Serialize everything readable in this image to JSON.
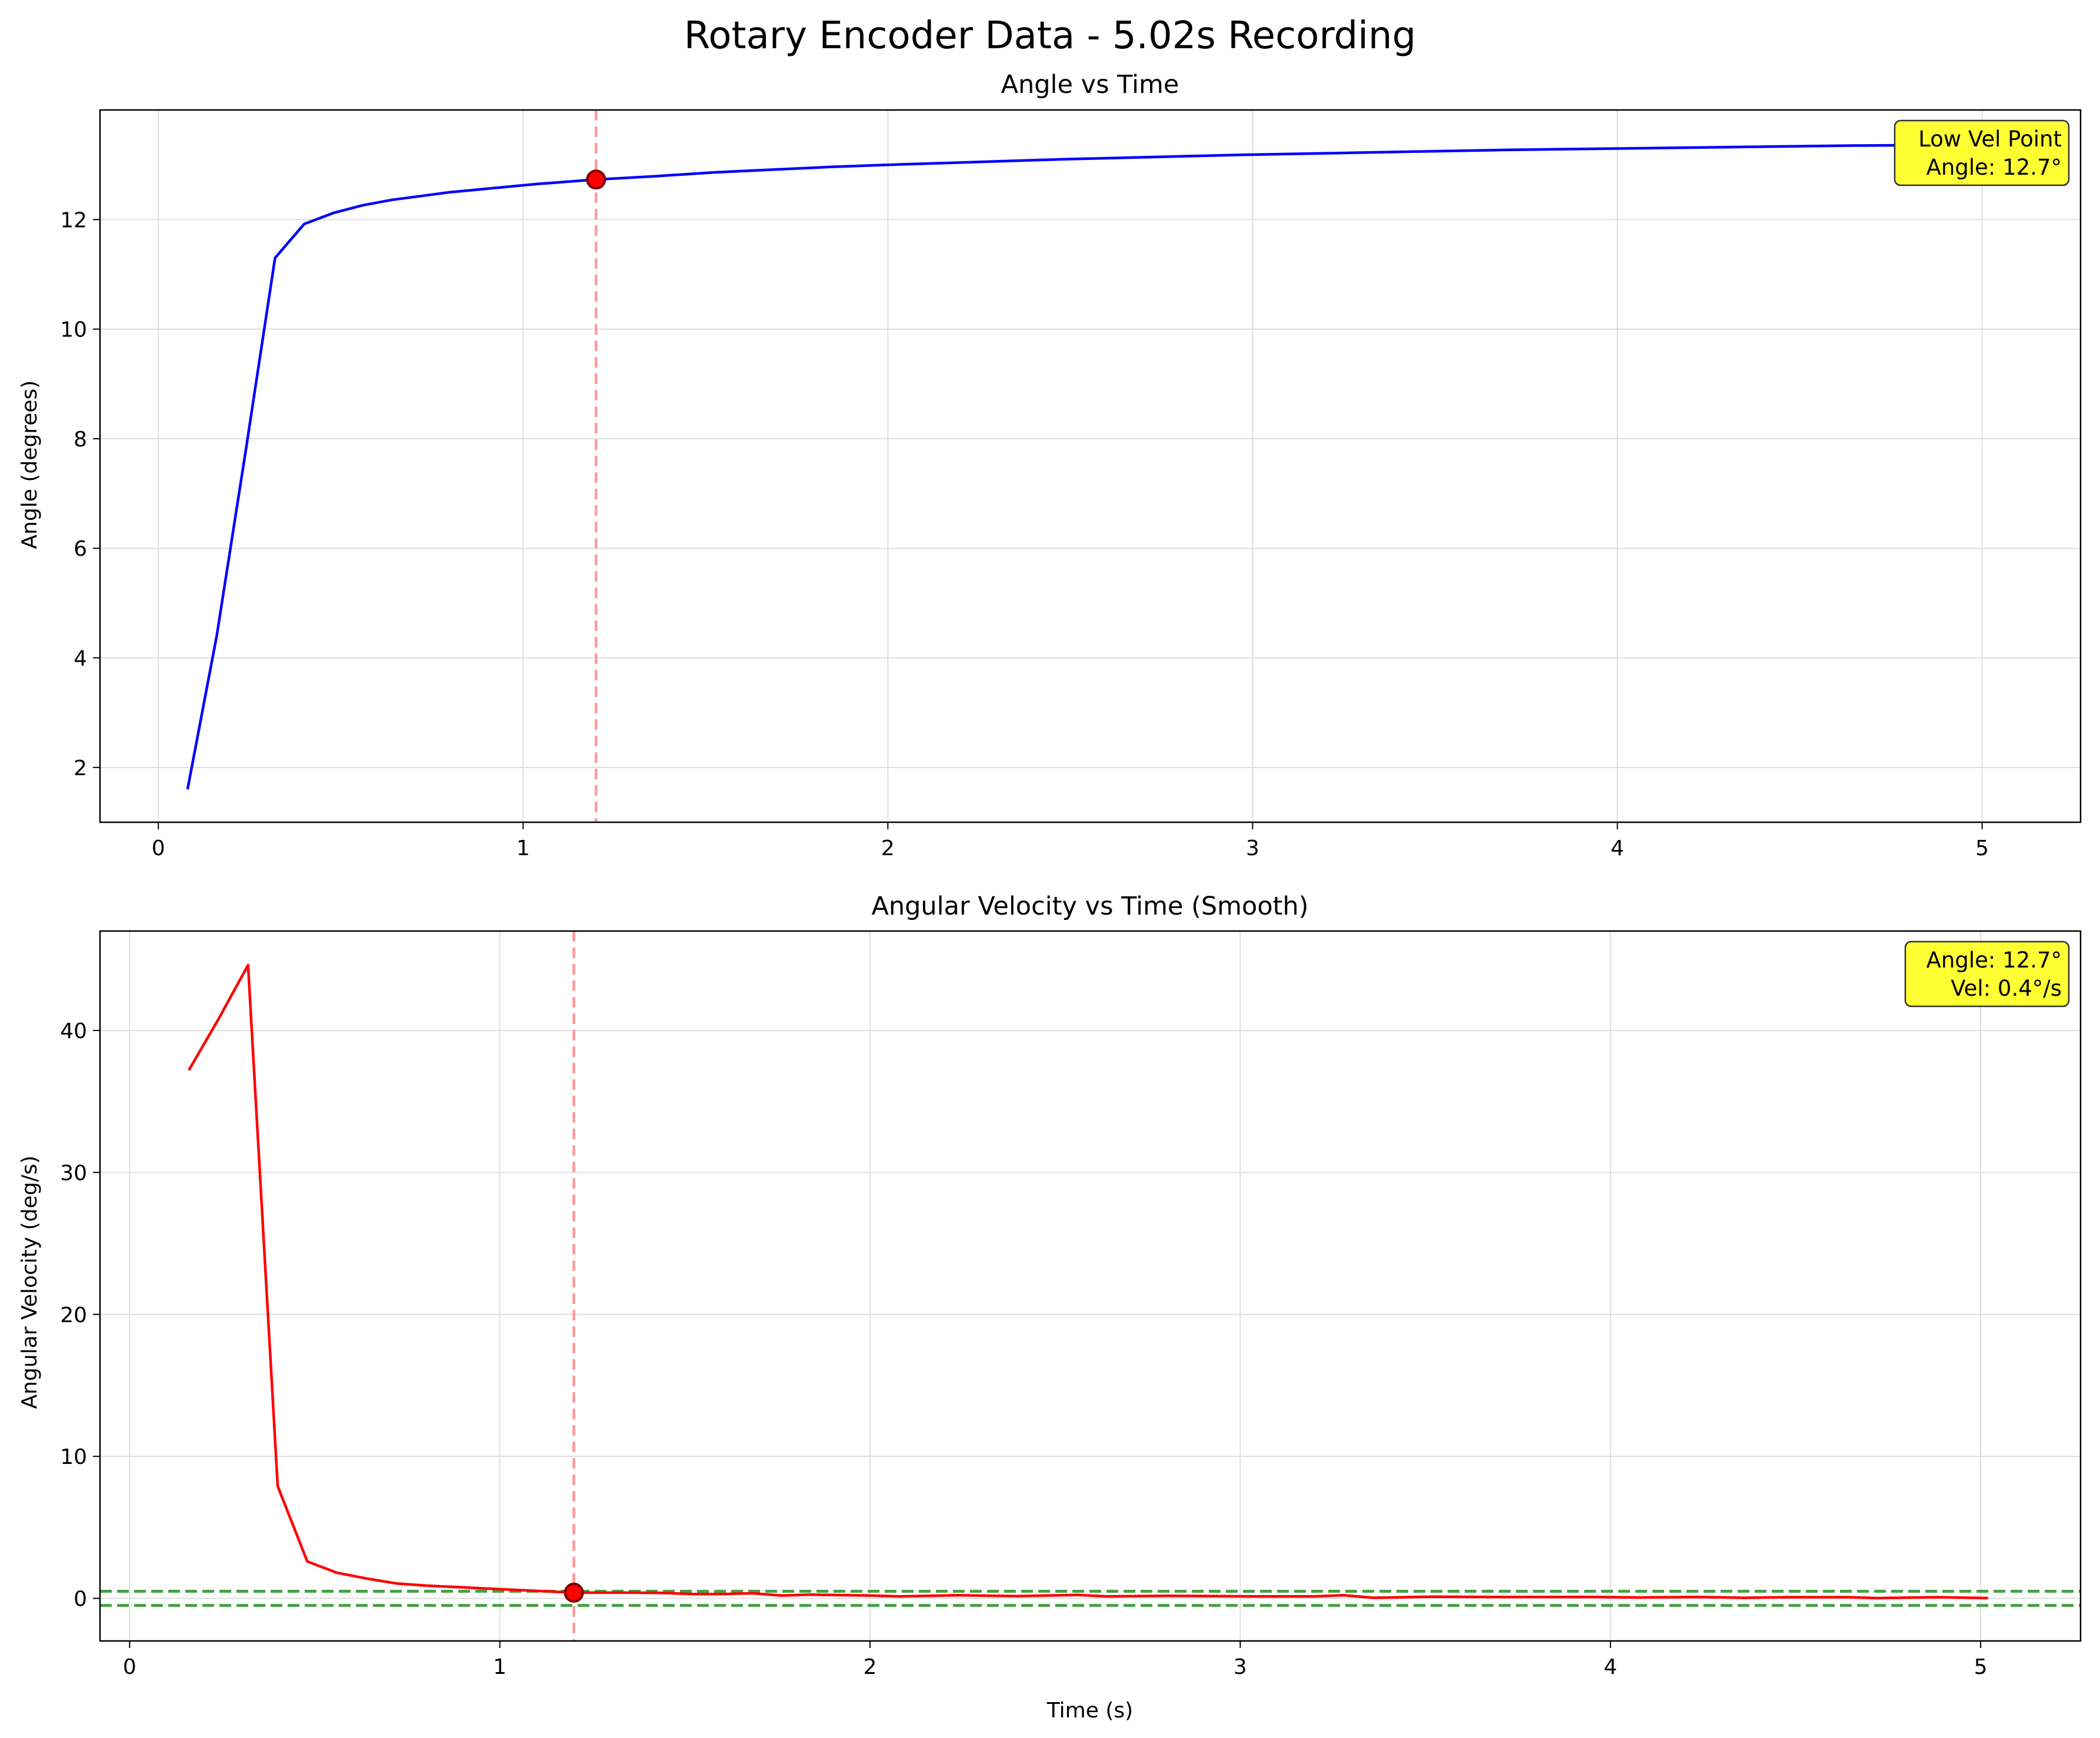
{
  "figure": {
    "title": "Rotary Encoder Data - 5.02s Recording"
  },
  "chart_data": [
    {
      "type": "line",
      "title": "Angle vs Time",
      "xlabel": "",
      "ylabel": "Angle (degrees)",
      "xlim": [
        -0.16,
        5.27
      ],
      "ylim": [
        1.0,
        14.0
      ],
      "xticks": [
        0,
        1,
        2,
        3,
        4,
        5
      ],
      "yticks": [
        2,
        4,
        6,
        8,
        10,
        12
      ],
      "grid": true,
      "series": [
        {
          "color": "#0000ff",
          "x": [
            0.08,
            0.16,
            0.24,
            0.32,
            0.4,
            0.48,
            0.56,
            0.64,
            0.72,
            0.8,
            0.88,
            0.96,
            1.04,
            1.12,
            1.2,
            1.36,
            1.52,
            1.68,
            1.84,
            2.0,
            2.24,
            2.48,
            2.72,
            2.96,
            3.2,
            3.44,
            3.68,
            3.92,
            4.16,
            4.4,
            4.64,
            4.88,
            5.02
          ],
          "y": [
            1.6,
            4.4,
            7.8,
            11.3,
            11.92,
            12.12,
            12.26,
            12.36,
            12.43,
            12.5,
            12.55,
            12.6,
            12.65,
            12.69,
            12.73,
            12.79,
            12.86,
            12.91,
            12.96,
            13.0,
            13.05,
            13.1,
            13.14,
            13.18,
            13.21,
            13.24,
            13.27,
            13.29,
            13.31,
            13.33,
            13.35,
            13.36,
            13.37
          ]
        }
      ],
      "marker": {
        "x": 1.2,
        "y": 12.73,
        "color": "#ff0000"
      },
      "vline": {
        "x": 1.2,
        "color": "#ff9999"
      },
      "annotation": {
        "lines": [
          "Low Vel Point",
          "Angle: 12.7°"
        ],
        "position": "top-right",
        "bg": "#ffff33"
      }
    },
    {
      "type": "line",
      "title": "Angular Velocity vs Time (Smooth)",
      "xlabel": "Time (s)",
      "ylabel": "Angular Velocity (deg/s)",
      "xlim": [
        -0.08,
        5.27
      ],
      "ylim": [
        -3.0,
        47.0
      ],
      "xticks": [
        0,
        1,
        2,
        3,
        4,
        5
      ],
      "yticks": [
        0,
        10,
        20,
        30,
        40
      ],
      "grid": true,
      "series": [
        {
          "color": "#ff0000",
          "x": [
            0.16,
            0.24,
            0.32,
            0.4,
            0.48,
            0.56,
            0.64,
            0.72,
            0.8,
            0.88,
            0.96,
            1.04,
            1.12,
            1.2,
            1.36,
            1.44,
            1.52,
            1.6,
            1.68,
            1.76,
            1.84,
            2.0,
            2.08,
            2.24,
            2.4,
            2.56,
            2.64,
            2.8,
            3.04,
            3.2,
            3.28,
            3.36,
            3.52,
            3.68,
            3.84,
            3.96,
            4.08,
            4.24,
            4.36,
            4.48,
            4.64,
            4.72,
            4.88,
            5.02
          ],
          "y": [
            37.2,
            40.8,
            44.6,
            7.9,
            2.6,
            1.8,
            1.4,
            1.05,
            0.9,
            0.8,
            0.7,
            0.6,
            0.5,
            0.4,
            0.4,
            0.38,
            0.3,
            0.3,
            0.36,
            0.2,
            0.26,
            0.2,
            0.14,
            0.22,
            0.16,
            0.24,
            0.14,
            0.18,
            0.14,
            0.14,
            0.22,
            0.04,
            0.12,
            0.1,
            0.1,
            0.1,
            0.06,
            0.1,
            0.04,
            0.08,
            0.08,
            0.02,
            0.08,
            0.02
          ]
        }
      ],
      "marker": {
        "x": 1.2,
        "y": 0.4,
        "color": "#ff0000"
      },
      "vline": {
        "x": 1.2,
        "color": "#ff9999"
      },
      "hlines": [
        {
          "y": 0.5,
          "color": "#339933"
        },
        {
          "y": -0.5,
          "color": "#339933"
        }
      ],
      "annotation": {
        "lines": [
          "Angle: 12.7°",
          "Vel: 0.4°/s"
        ],
        "position": "top-right",
        "bg": "#ffff33"
      }
    }
  ]
}
